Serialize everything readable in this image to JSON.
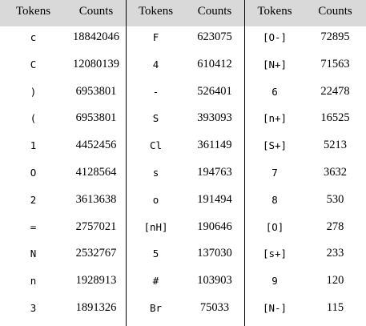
{
  "header": {
    "tokens_1": "Tokens",
    "counts_1": "Counts",
    "tokens_2": "Tokens",
    "counts_2": "Counts",
    "tokens_3": "Tokens",
    "counts_3": "Counts"
  },
  "rows": [
    [
      "c",
      "18842046",
      "F",
      "623075",
      "[O-]",
      "72895"
    ],
    [
      "C",
      "12080139",
      "4",
      "610412",
      "[N+]",
      "71563"
    ],
    [
      ")",
      "6953801",
      "-",
      "526401",
      "6",
      "22478"
    ],
    [
      "(",
      "6953801",
      "S",
      "393093",
      "[n+]",
      "16525"
    ],
    [
      "1",
      "4452456",
      "Cl",
      "361149",
      "[S+]",
      "5213"
    ],
    [
      "O",
      "4128564",
      "s",
      "194763",
      "7",
      "3632"
    ],
    [
      "2",
      "3613638",
      "o",
      "191494",
      "8",
      "530"
    ],
    [
      "=",
      "2757021",
      "[nH]",
      "190646",
      "[O]",
      "278"
    ],
    [
      "N",
      "2532767",
      "5",
      "137030",
      "[s+]",
      "233"
    ],
    [
      "n",
      "1928913",
      "#",
      "103903",
      "9",
      "120"
    ],
    [
      "3",
      "1891326",
      "Br",
      "75033",
      "[N-]",
      "115"
    ]
  ],
  "colors": {
    "header_background": "#d9d9d9",
    "text": "#000000",
    "divider": "#000000"
  }
}
